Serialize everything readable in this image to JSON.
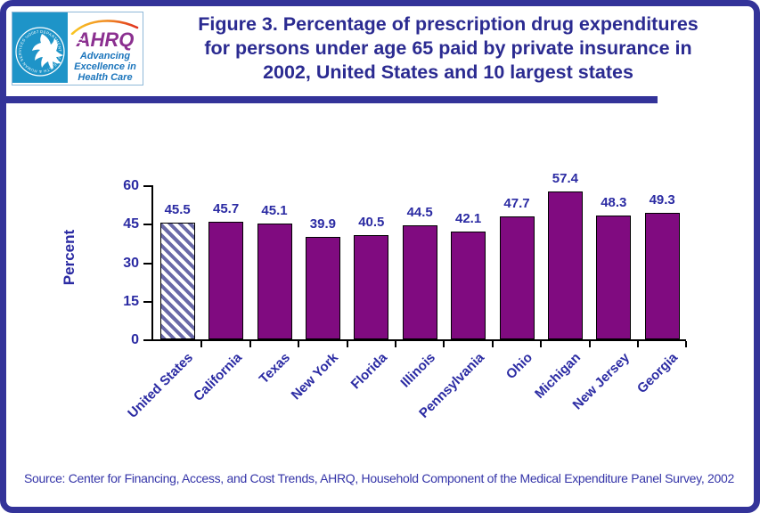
{
  "page": {
    "background": "#ffffff",
    "border_color": "#333399"
  },
  "header": {
    "logo": {
      "hhs_seal_text": "DEPARTMENT OF HEALTH & HUMAN SERVICES · USA",
      "ahrq_acronym": "AHRQ",
      "tagline_lines": [
        "Advancing",
        "Excellence in",
        "Health Care"
      ]
    },
    "title_lines": [
      "Figure 3. Percentage of prescription drug expenditures",
      "for persons under age 65 paid by private insurance in",
      "2002, United States and 10 largest states"
    ]
  },
  "chart_data": {
    "type": "bar",
    "title": "Figure 3. Percentage of prescription drug expenditures for persons under age 65 paid by private insurance in 2002, United States and 10 largest states",
    "categories": [
      "United States",
      "California",
      "Texas",
      "New York",
      "Florida",
      "Illinois",
      "Pennsylvania",
      "Ohio",
      "Michigan",
      "New Jersey",
      "Georgia"
    ],
    "values": [
      45.5,
      45.7,
      45.1,
      39.9,
      40.5,
      44.5,
      42.1,
      47.7,
      57.4,
      48.3,
      49.3
    ],
    "xlabel": "",
    "ylabel": "Percent",
    "ylim": [
      0,
      60
    ],
    "yticks": [
      0,
      15,
      30,
      45,
      60
    ],
    "grid": false,
    "legend": "none",
    "data_labels": true,
    "bar_color": "#800B80",
    "highlight": {
      "index": 0,
      "style": "diagonal-hatch",
      "hatch_color": "#6A6AA8",
      "hatch_background": "#FFFFFF"
    }
  },
  "footer": {
    "source": "Source: Center for Financing, Access, and Cost Trends, AHRQ, Household Component of the Medical Expenditure Panel Survey, 2002"
  },
  "colors": {
    "title_navy": "#2B2B91",
    "label_blue": "#2B2BA3",
    "border_navy": "#333399",
    "hhs_blue": "#1E94C8",
    "ahrq_purple": "#8B3090",
    "tagline_blue": "#1B75BC"
  }
}
